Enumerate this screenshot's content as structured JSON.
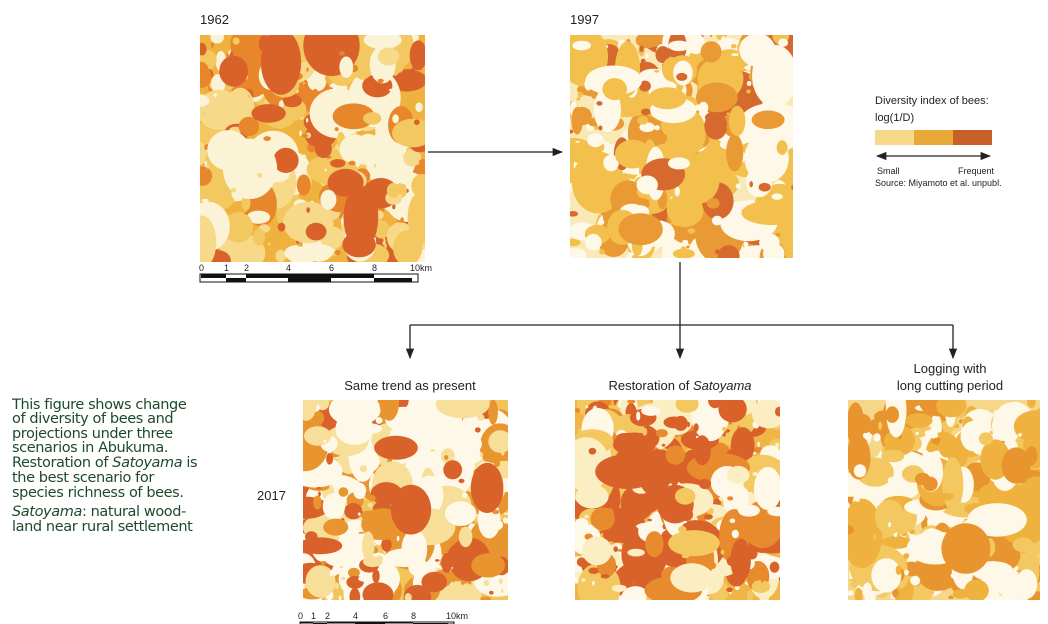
{
  "panels": {
    "top_left": {
      "year": "1962"
    },
    "top_right": {
      "year": "1997"
    },
    "bottom_year": "2017",
    "scenarios": [
      {
        "lines": [
          [
            {
              "text": "Same trend as present",
              "italic": false
            }
          ]
        ]
      },
      {
        "lines": [
          [
            {
              "text": "Restoration of ",
              "italic": false
            },
            {
              "text": "Satoyama",
              "italic": true
            }
          ]
        ]
      },
      {
        "lines": [
          [
            {
              "text": "Logging with",
              "italic": false
            }
          ],
          [
            {
              "text": "long cutting period",
              "italic": false
            }
          ]
        ]
      }
    ]
  },
  "scale_bar": {
    "labels": [
      "0",
      "1",
      "2",
      "4",
      "6",
      "8",
      "10km"
    ]
  },
  "legend": {
    "title_lines": [
      "Diversity index of bees:",
      "log(1/D)"
    ],
    "low": "Small",
    "high": "Frequent",
    "source": "Source: Miyamoto et al. unpubl.",
    "colors": [
      "#f6d98a",
      "#e8a83a",
      "#c8602a"
    ]
  },
  "description": {
    "lines": [
      [
        {
          "text": "This figure shows change",
          "italic": false
        }
      ],
      [
        {
          "text": "of diversity of bees and",
          "italic": false
        }
      ],
      [
        {
          "text": "projections under three",
          "italic": false
        }
      ],
      [
        {
          "text": "scenarios in Abukuma.",
          "italic": false
        }
      ],
      [
        {
          "text": "Restoration of ",
          "italic": false
        },
        {
          "text": "Satoyama",
          "italic": true
        },
        {
          "text": " is",
          "italic": false
        }
      ],
      [
        {
          "text": "the best scenario for",
          "italic": false
        }
      ],
      [
        {
          "text": "species richness of bees.",
          "italic": false
        }
      ],
      [
        {
          "text": "Satoyama",
          "italic": true
        },
        {
          "text": ": natural wood-",
          "italic": false
        }
      ],
      [
        {
          "text": "land near rural settlement",
          "italic": false
        }
      ]
    ]
  }
}
